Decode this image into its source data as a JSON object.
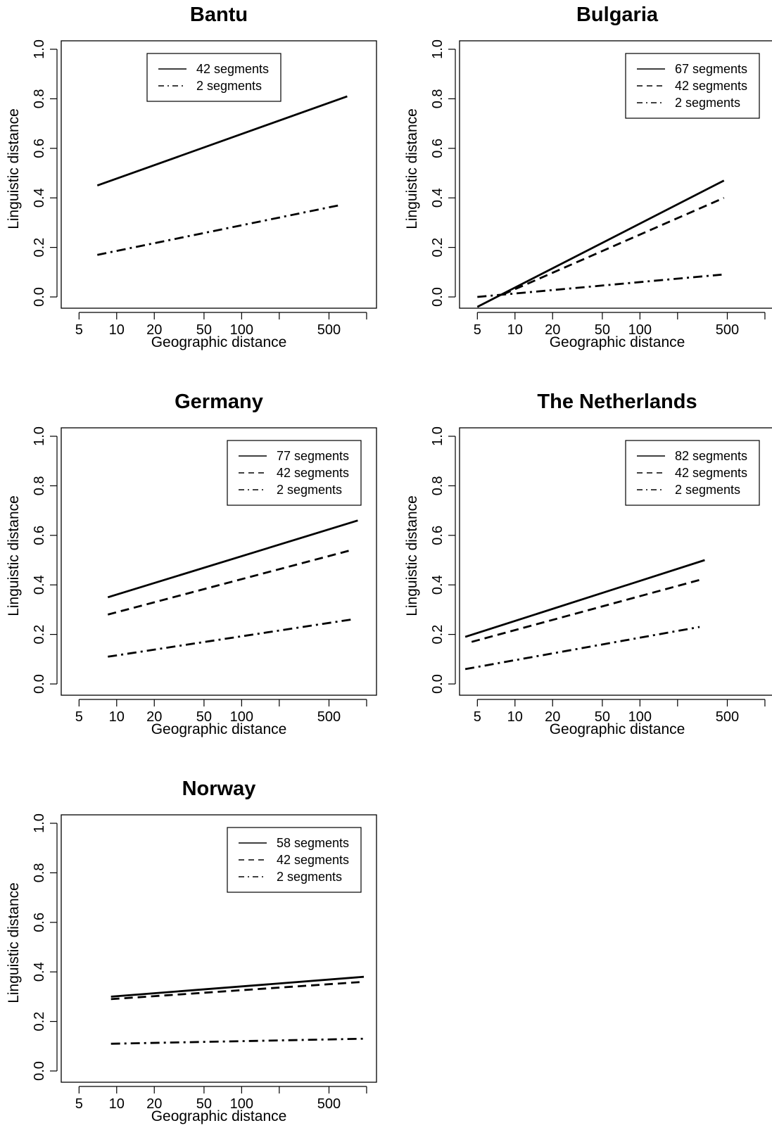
{
  "chart_data": [
    {
      "type": "line",
      "title": "Bantu",
      "xlabel": "Geographic distance",
      "ylabel": "Linguistic distance",
      "xscale": "log",
      "xticks": [
        5,
        10,
        20,
        50,
        100,
        200,
        500,
        1000
      ],
      "xtick_labels": [
        "5",
        "10",
        "20",
        "50",
        "100",
        "",
        "500",
        ""
      ],
      "yticks": [
        0.0,
        0.2,
        0.4,
        0.6,
        0.8,
        1.0
      ],
      "ytick_labels": [
        "0.0",
        "0.2",
        "0.4",
        "0.6",
        "0.8",
        "1.0"
      ],
      "ylim": [
        0.0,
        1.0
      ],
      "legend_position": "top-center",
      "series": [
        {
          "name": "42 segments",
          "style": "solid",
          "x": [
            7,
            700
          ],
          "y": [
            0.45,
            0.81
          ]
        },
        {
          "name": "2 segments",
          "style": "dashdot",
          "x": [
            7,
            600
          ],
          "y": [
            0.17,
            0.37
          ]
        }
      ]
    },
    {
      "type": "line",
      "title": "Bulgaria",
      "xlabel": "Geographic distance",
      "ylabel": "Linguistic distance",
      "xscale": "log",
      "xticks": [
        5,
        10,
        20,
        50,
        100,
        200,
        500,
        1000
      ],
      "xtick_labels": [
        "5",
        "10",
        "20",
        "50",
        "100",
        "",
        "500",
        ""
      ],
      "yticks": [
        0.0,
        0.2,
        0.4,
        0.6,
        0.8,
        1.0
      ],
      "ytick_labels": [
        "0.0",
        "0.2",
        "0.4",
        "0.6",
        "0.8",
        "1.0"
      ],
      "ylim": [
        0.0,
        1.0
      ],
      "legend_position": "top-right",
      "series": [
        {
          "name": "67 segments",
          "style": "solid",
          "x": [
            5,
            470
          ],
          "y": [
            -0.04,
            0.47
          ]
        },
        {
          "name": "42 segments",
          "style": "dashed",
          "x": [
            8,
            470
          ],
          "y": [
            0.01,
            0.4
          ]
        },
        {
          "name": "2 segments",
          "style": "dashdot",
          "x": [
            5,
            450
          ],
          "y": [
            0.0,
            0.09
          ]
        }
      ]
    },
    {
      "type": "line",
      "title": "Germany",
      "xlabel": "Geographic distance",
      "ylabel": "Linguistic distance",
      "xscale": "log",
      "xticks": [
        5,
        10,
        20,
        50,
        100,
        200,
        500,
        1000
      ],
      "xtick_labels": [
        "5",
        "10",
        "20",
        "50",
        "100",
        "",
        "500",
        ""
      ],
      "yticks": [
        0.0,
        0.2,
        0.4,
        0.6,
        0.8,
        1.0
      ],
      "ytick_labels": [
        "0.0",
        "0.2",
        "0.4",
        "0.6",
        "0.8",
        "1.0"
      ],
      "ylim": [
        0.0,
        1.0
      ],
      "legend_position": "top-right",
      "series": [
        {
          "name": "77 segments",
          "style": "solid",
          "x": [
            8.5,
            850
          ],
          "y": [
            0.35,
            0.66
          ]
        },
        {
          "name": "42 segments",
          "style": "dashed",
          "x": [
            8.5,
            750
          ],
          "y": [
            0.28,
            0.54
          ]
        },
        {
          "name": "2 segments",
          "style": "dashdot",
          "x": [
            8.5,
            750
          ],
          "y": [
            0.11,
            0.26
          ]
        }
      ]
    },
    {
      "type": "line",
      "title": "The Netherlands",
      "xlabel": "Geographic distance",
      "ylabel": "Linguistic distance",
      "xscale": "log",
      "xticks": [
        5,
        10,
        20,
        50,
        100,
        200,
        500,
        1000
      ],
      "xtick_labels": [
        "5",
        "10",
        "20",
        "50",
        "100",
        "",
        "500",
        ""
      ],
      "yticks": [
        0.0,
        0.2,
        0.4,
        0.6,
        0.8,
        1.0
      ],
      "ytick_labels": [
        "0.0",
        "0.2",
        "0.4",
        "0.6",
        "0.8",
        "1.0"
      ],
      "ylim": [
        0.0,
        1.0
      ],
      "legend_position": "top-right",
      "series": [
        {
          "name": "82 segments",
          "style": "solid",
          "x": [
            4,
            330
          ],
          "y": [
            0.19,
            0.5
          ]
        },
        {
          "name": "42 segments",
          "style": "dashed",
          "x": [
            4.5,
            300
          ],
          "y": [
            0.17,
            0.42
          ]
        },
        {
          "name": "2 segments",
          "style": "dashdot",
          "x": [
            4,
            300
          ],
          "y": [
            0.06,
            0.23
          ]
        }
      ]
    },
    {
      "type": "line",
      "title": "Norway",
      "xlabel": "Geographic distance",
      "ylabel": "Linguistic distance",
      "xscale": "log",
      "xticks": [
        5,
        10,
        20,
        50,
        100,
        200,
        500,
        1000
      ],
      "xtick_labels": [
        "5",
        "10",
        "20",
        "50",
        "100",
        "",
        "500",
        ""
      ],
      "yticks": [
        0.0,
        0.2,
        0.4,
        0.6,
        0.8,
        1.0
      ],
      "ytick_labels": [
        "0.0",
        "0.2",
        "0.4",
        "0.6",
        "0.8",
        "1.0"
      ],
      "ylim": [
        0.0,
        1.0
      ],
      "legend_position": "top-right",
      "series": [
        {
          "name": "58 segments",
          "style": "solid",
          "x": [
            9,
            950
          ],
          "y": [
            0.3,
            0.38
          ]
        },
        {
          "name": "42 segments",
          "style": "dashed",
          "x": [
            9,
            950
          ],
          "y": [
            0.29,
            0.36
          ]
        },
        {
          "name": "2 segments",
          "style": "dashdot",
          "x": [
            9,
            950
          ],
          "y": [
            0.11,
            0.13
          ]
        }
      ]
    }
  ]
}
